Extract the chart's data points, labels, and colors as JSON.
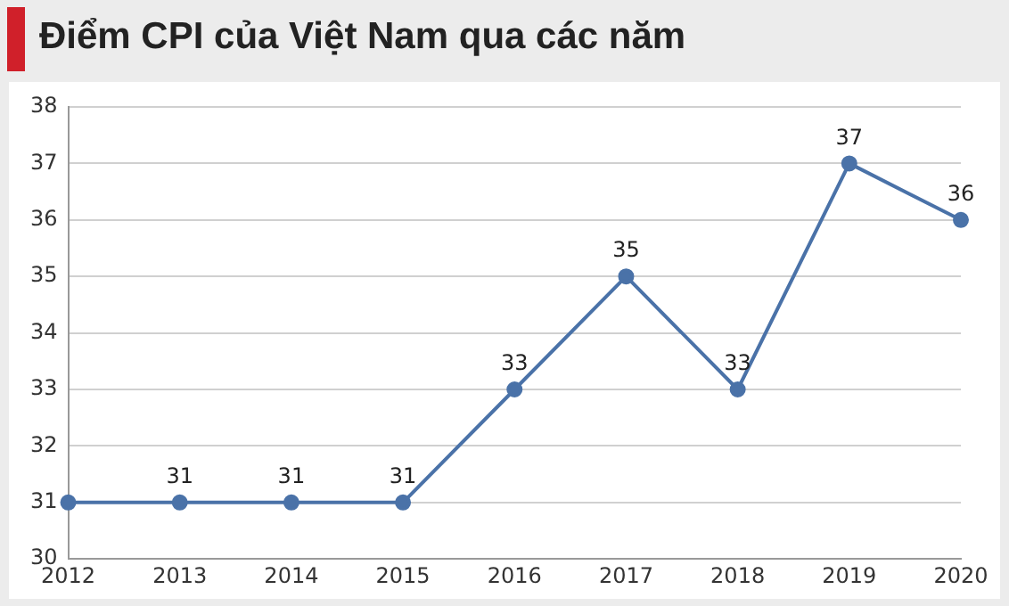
{
  "chart_data": {
    "type": "line",
    "title": "Điểm CPI của Việt Nam qua các năm",
    "x": [
      2012,
      2013,
      2014,
      2015,
      2016,
      2017,
      2018,
      2019,
      2020
    ],
    "values": [
      31,
      31,
      31,
      31,
      33,
      35,
      33,
      37,
      36
    ],
    "value_labels": [
      null,
      "31",
      "31",
      "31",
      "33",
      "35",
      "33",
      "37",
      "36"
    ],
    "color": "#4a72a8",
    "marker": "circle",
    "line_style": "solid",
    "xlim": [
      2012,
      2020
    ],
    "xticks": [
      2012,
      2013,
      2014,
      2015,
      2016,
      2017,
      2018,
      2019,
      2020
    ],
    "ylim": [
      30,
      38
    ],
    "yticks": [
      30,
      31,
      32,
      33,
      34,
      35,
      36,
      37,
      38
    ],
    "grid": "y",
    "legend": false
  }
}
